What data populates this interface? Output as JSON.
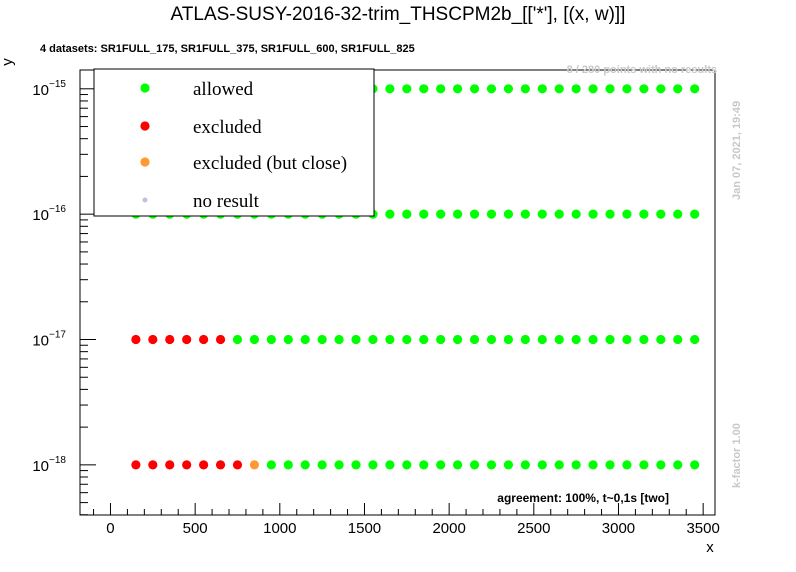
{
  "chart_data": {
    "type": "scatter",
    "title": "ATLAS-SUSY-2016-32-trim_THSCPM2b_[['*'], [(x, w)]]",
    "subtitle": "4 datasets: SR1FULL_175, SR1FULL_375, SR1FULL_600, SR1FULL_825",
    "xlabel": "x",
    "ylabel": "y",
    "x_scale": "linear",
    "y_scale": "log",
    "xlim": [
      -180,
      3570
    ],
    "ylim_log10": [
      -18.4,
      -14.85
    ],
    "x_ticks": [
      0,
      500,
      1000,
      1500,
      2000,
      2500,
      3000,
      3500
    ],
    "x_tick_labels": [
      "0",
      "500",
      "1000",
      "1500",
      "2000",
      "2500",
      "3000",
      "3500"
    ],
    "y_ticks_exp": [
      -18,
      -17,
      -16,
      -15
    ],
    "y_tick_base": "10",
    "y_tick_exponents": [
      "−18",
      "−17",
      "−16",
      "−15"
    ],
    "x_grid_start": 150,
    "x_grid_step": 100,
    "x_grid_count": 34,
    "series": [
      {
        "name": "allowed",
        "color": "#00ff00"
      },
      {
        "name": "excluded",
        "color": "#ff0000"
      },
      {
        "name": "excluded (but close)",
        "color": "#ff9933"
      },
      {
        "name": "no result",
        "color": "#c0c0e0"
      }
    ],
    "rows": [
      {
        "y_exp": -15,
        "excluded_x": [],
        "close_x": []
      },
      {
        "y_exp": -16,
        "excluded_x": [],
        "close_x": []
      },
      {
        "y_exp": -17,
        "excluded_x": [
          150,
          250,
          350,
          450,
          550,
          650
        ],
        "close_x": []
      },
      {
        "y_exp": -18,
        "excluded_x": [
          150,
          250,
          350,
          450,
          550,
          650,
          750
        ],
        "close_x": [
          850
        ]
      }
    ],
    "legend_placement": "top-left",
    "grid": false
  },
  "annotations": {
    "points_note": "8 / 280 points with no results",
    "date": "Jan 07, 2021, 19:49",
    "kfactor": "k-factor 1.00",
    "agreement": "agreement: 100%, t~0,1s [two]"
  }
}
